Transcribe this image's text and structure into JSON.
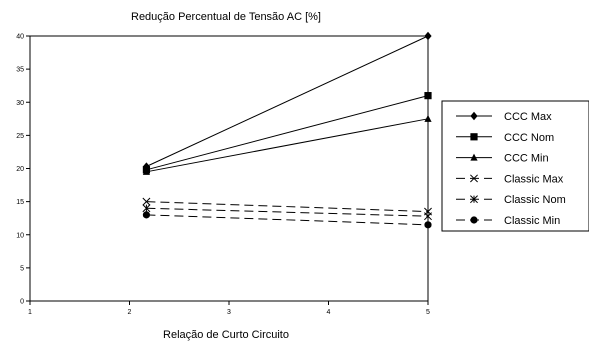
{
  "chart_data": {
    "type": "line",
    "title": "Redução Percentual de Tensão AC [%]",
    "xlabel": "Relação de Curto Circuito",
    "ylabel": "",
    "xlim": [
      1,
      5
    ],
    "ylim": [
      0,
      40
    ],
    "xticks": [
      1,
      2,
      3,
      4,
      5
    ],
    "yticks": [
      0,
      5,
      10,
      15,
      20,
      25,
      30,
      35,
      40
    ],
    "x": [
      2.17,
      5
    ],
    "grid": false,
    "legend_position": "right",
    "series": [
      {
        "name": "CCC Max",
        "values": [
          20.3,
          40
        ],
        "marker": "diamond",
        "dash": "solid"
      },
      {
        "name": "CCC Nom",
        "values": [
          19.8,
          31
        ],
        "marker": "square",
        "dash": "solid"
      },
      {
        "name": "CCC Min",
        "values": [
          19.5,
          27.5
        ],
        "marker": "triangle",
        "dash": "solid"
      },
      {
        "name": "Classic Max",
        "values": [
          15,
          13.5
        ],
        "marker": "x",
        "dash": "dashed"
      },
      {
        "name": "Classic Nom",
        "values": [
          14,
          12.8
        ],
        "marker": "asterisk",
        "dash": "dashed"
      },
      {
        "name": "Classic Min",
        "values": [
          13,
          11.5
        ],
        "marker": "circle",
        "dash": "dashed"
      }
    ]
  }
}
